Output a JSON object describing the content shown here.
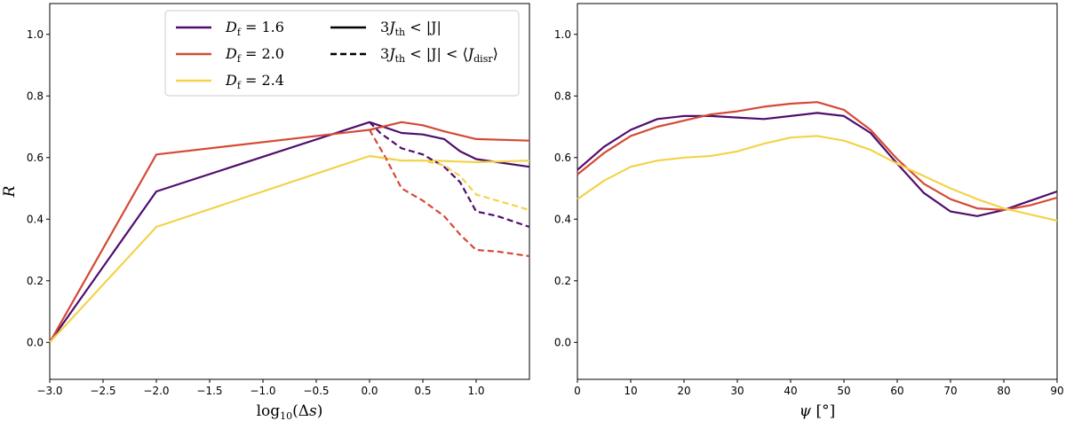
{
  "chart_data": [
    {
      "type": "line",
      "title": "",
      "xlabel": "log10(Δs)",
      "ylabel": "R",
      "xlim": [
        -3.0,
        1.5
      ],
      "ylim": [
        -0.12,
        1.1
      ],
      "xticks": [
        -3.0,
        -2.5,
        -2.0,
        -1.5,
        -1.0,
        -0.5,
        0.0,
        0.5,
        1.0
      ],
      "xtick_labels": [
        "−3.0",
        "−2.5",
        "−2.0",
        "−1.5",
        "−1.0",
        "−0.5",
        "0.0",
        "0.5",
        "1.0"
      ],
      "yticks": [
        0.0,
        0.2,
        0.4,
        0.6,
        0.8,
        1.0
      ],
      "ytick_labels": [
        "0.0",
        "0.2",
        "0.4",
        "0.6",
        "0.8",
        "1.0"
      ],
      "series": [
        {
          "name": "Df=1.6",
          "condition": "3Jth<|J|",
          "color": "#4f0d6d",
          "dash": "solid",
          "x": [
            -3.0,
            -2.0,
            0.0,
            0.3,
            0.5,
            0.7,
            0.85,
            1.0,
            1.2,
            1.5
          ],
          "y": [
            0.0,
            0.49,
            0.715,
            0.68,
            0.675,
            0.66,
            0.62,
            0.595,
            0.585,
            0.57
          ]
        },
        {
          "name": "Df=2.0",
          "condition": "3Jth<|J|",
          "color": "#d44a37",
          "dash": "solid",
          "x": [
            -3.0,
            -2.0,
            0.0,
            0.3,
            0.5,
            0.7,
            1.0,
            1.5
          ],
          "y": [
            0.0,
            0.61,
            0.69,
            0.715,
            0.705,
            0.685,
            0.66,
            0.655
          ]
        },
        {
          "name": "Df=2.4",
          "condition": "3Jth<|J|",
          "color": "#f3d34c",
          "dash": "solid",
          "x": [
            -3.0,
            -2.0,
            0.0,
            0.3,
            0.6,
            1.0,
            1.5
          ],
          "y": [
            0.0,
            0.375,
            0.605,
            0.59,
            0.59,
            0.585,
            0.59
          ]
        },
        {
          "name": "Df=1.6",
          "condition": "3Jth<|J|<<Jdisr>",
          "color": "#4f0d6d",
          "dash": "dashed",
          "x": [
            0.0,
            0.1,
            0.3,
            0.5,
            0.7,
            0.85,
            1.0,
            1.2,
            1.5
          ],
          "y": [
            0.715,
            0.68,
            0.63,
            0.61,
            0.57,
            0.52,
            0.425,
            0.41,
            0.375
          ]
        },
        {
          "name": "Df=2.0",
          "condition": "3Jth<|J|<<Jdisr>",
          "color": "#d44a37",
          "dash": "dashed",
          "x": [
            0.0,
            0.15,
            0.3,
            0.5,
            0.7,
            0.85,
            1.0,
            1.2,
            1.5
          ],
          "y": [
            0.69,
            0.6,
            0.5,
            0.46,
            0.41,
            0.35,
            0.3,
            0.295,
            0.28
          ]
        },
        {
          "name": "Df=2.4",
          "condition": "3Jth<|J|<<Jdisr>",
          "color": "#f3d34c",
          "dash": "dashed",
          "x": [
            0.0,
            0.3,
            0.5,
            0.7,
            0.85,
            1.0,
            1.2,
            1.5
          ],
          "y": [
            0.605,
            0.59,
            0.59,
            0.575,
            0.54,
            0.48,
            0.46,
            0.43
          ]
        }
      ],
      "legend": {
        "placement": "top-right",
        "entries": [
          {
            "label": "Df = 1.6",
            "color": "#4f0d6d",
            "dash": "solid"
          },
          {
            "label": "3Jth < |J|",
            "color": "#000000",
            "dash": "solid"
          },
          {
            "label": "Df = 2.0",
            "color": "#d44a37",
            "dash": "solid"
          },
          {
            "label": "3Jth < |J| < ⟨Jdisr⟩",
            "color": "#000000",
            "dash": "dashed"
          },
          {
            "label": "Df = 2.4",
            "color": "#f3d34c",
            "dash": "solid"
          }
        ]
      }
    },
    {
      "type": "line",
      "title": "",
      "xlabel": "ψ [°]",
      "ylabel": "",
      "xlim": [
        0,
        90
      ],
      "ylim": [
        -0.12,
        1.1
      ],
      "xticks": [
        0,
        10,
        20,
        30,
        40,
        50,
        60,
        70,
        80,
        90
      ],
      "xtick_labels": [
        "0",
        "10",
        "20",
        "30",
        "40",
        "50",
        "60",
        "70",
        "80",
        "90"
      ],
      "yticks": [
        0.0,
        0.2,
        0.4,
        0.6,
        0.8,
        1.0
      ],
      "ytick_labels": [
        "0.0",
        "0.2",
        "0.4",
        "0.6",
        "0.8",
        "1.0"
      ],
      "series": [
        {
          "name": "Df=1.6",
          "color": "#4f0d6d",
          "dash": "solid",
          "x": [
            0,
            5,
            10,
            15,
            20,
            25,
            30,
            35,
            40,
            45,
            50,
            55,
            60,
            65,
            70,
            75,
            80,
            85,
            90
          ],
          "y": [
            0.56,
            0.635,
            0.69,
            0.725,
            0.735,
            0.735,
            0.73,
            0.725,
            0.735,
            0.745,
            0.735,
            0.68,
            0.58,
            0.485,
            0.425,
            0.41,
            0.43,
            0.46,
            0.49
          ]
        },
        {
          "name": "Df=2.0",
          "color": "#d44a37",
          "dash": "solid",
          "x": [
            0,
            5,
            10,
            15,
            20,
            25,
            30,
            35,
            40,
            45,
            50,
            55,
            60,
            65,
            70,
            75,
            80,
            85,
            90
          ],
          "y": [
            0.545,
            0.615,
            0.67,
            0.7,
            0.72,
            0.74,
            0.75,
            0.765,
            0.775,
            0.78,
            0.755,
            0.69,
            0.595,
            0.515,
            0.465,
            0.435,
            0.43,
            0.445,
            0.47
          ]
        },
        {
          "name": "Df=2.4",
          "color": "#f3d34c",
          "dash": "solid",
          "x": [
            0,
            5,
            10,
            15,
            20,
            25,
            30,
            35,
            40,
            45,
            50,
            55,
            60,
            65,
            70,
            75,
            80,
            85,
            90
          ],
          "y": [
            0.465,
            0.525,
            0.57,
            0.59,
            0.6,
            0.605,
            0.62,
            0.645,
            0.665,
            0.67,
            0.655,
            0.625,
            0.58,
            0.54,
            0.5,
            0.465,
            0.435,
            0.415,
            0.395
          ]
        }
      ]
    }
  ]
}
